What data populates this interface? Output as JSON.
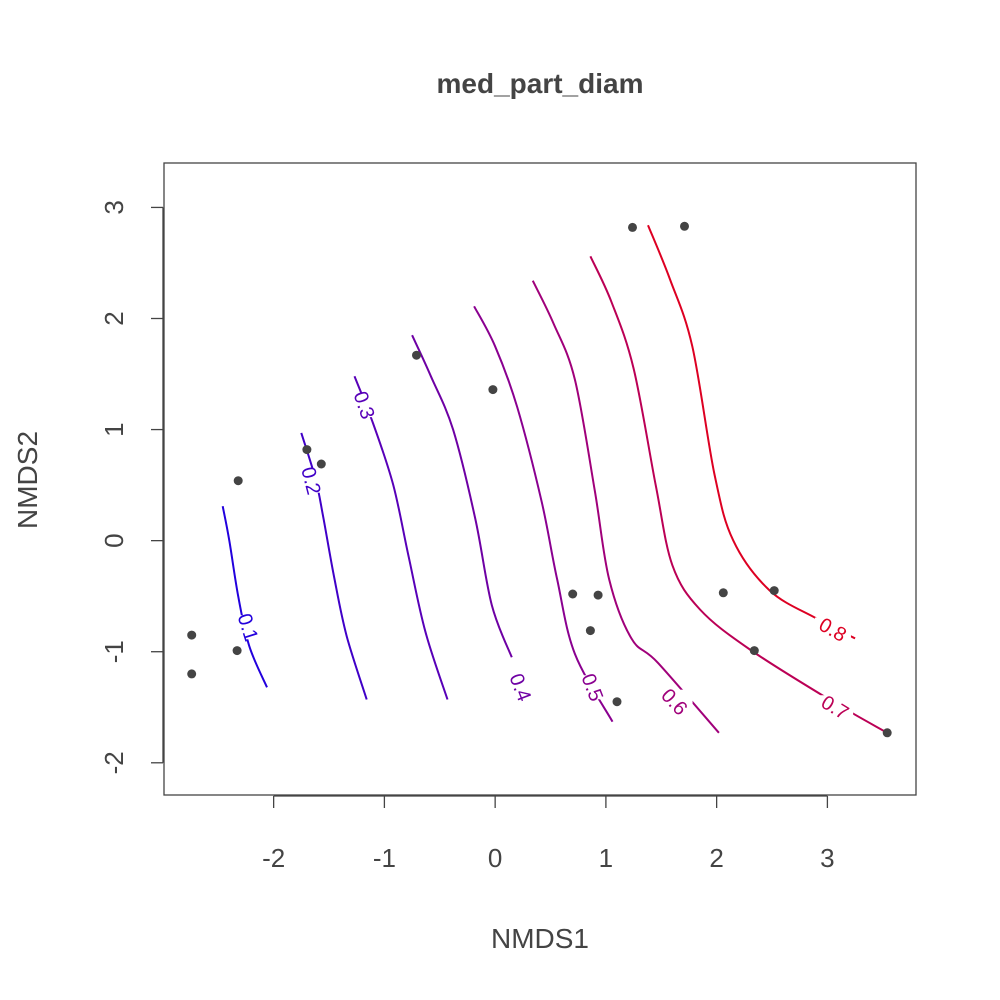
{
  "chart_data": {
    "type": "scatter",
    "title": "med_part_diam",
    "xlabel": "NMDS1",
    "ylabel": "NMDS2",
    "xlim": [
      -2.99,
      3.8
    ],
    "ylim": [
      -2.29,
      3.4
    ],
    "x_ticks": [
      -2,
      -1,
      0,
      1,
      2,
      3
    ],
    "x_tick_labels": [
      "-2",
      "-1",
      "0",
      "1",
      "2",
      "3"
    ],
    "y_ticks": [
      -2,
      -1,
      0,
      1,
      2,
      3
    ],
    "y_tick_labels": [
      "-2",
      "-1",
      "0",
      "1",
      "2",
      "3"
    ],
    "grid": false,
    "legend": "none",
    "point_color": "#444444",
    "points": [
      {
        "x": -2.74,
        "y": -0.85
      },
      {
        "x": -2.74,
        "y": -1.2
      },
      {
        "x": -2.33,
        "y": -0.99
      },
      {
        "x": -2.32,
        "y": 0.54
      },
      {
        "x": -1.7,
        "y": 0.82
      },
      {
        "x": -1.57,
        "y": 0.69
      },
      {
        "x": -0.71,
        "y": 1.67
      },
      {
        "x": -0.02,
        "y": 1.36
      },
      {
        "x": 0.7,
        "y": -0.48
      },
      {
        "x": 0.86,
        "y": -0.81
      },
      {
        "x": 0.93,
        "y": -0.49
      },
      {
        "x": 1.1,
        "y": -1.45
      },
      {
        "x": 1.24,
        "y": 2.82
      },
      {
        "x": 1.71,
        "y": 2.83
      },
      {
        "x": 2.06,
        "y": -0.47
      },
      {
        "x": 2.34,
        "y": -0.99
      },
      {
        "x": 2.52,
        "y": -0.45
      },
      {
        "x": 3.54,
        "y": -1.73
      }
    ],
    "contours": [
      {
        "level": "0.1",
        "color": "#2200dd",
        "path": [
          [
            -2.46,
            0.31
          ],
          [
            -2.4,
            0.0
          ],
          [
            -2.32,
            -0.5
          ],
          [
            -2.22,
            -0.95
          ],
          [
            -2.06,
            -1.32
          ]
        ],
        "label_at": [
          -2.23,
          -0.78
        ]
      },
      {
        "level": "0.2",
        "color": "#4000c8",
        "path": [
          [
            -1.75,
            0.97
          ],
          [
            -1.62,
            0.55
          ],
          [
            -1.55,
            0.2
          ],
          [
            -1.45,
            -0.35
          ],
          [
            -1.34,
            -0.86
          ],
          [
            -1.16,
            -1.43
          ]
        ],
        "label_at": [
          -1.66,
          0.54
        ]
      },
      {
        "level": "0.3",
        "color": "#5800b8",
        "path": [
          [
            -1.27,
            1.48
          ],
          [
            -1.1,
            1.05
          ],
          [
            -0.92,
            0.5
          ],
          [
            -0.78,
            -0.15
          ],
          [
            -0.63,
            -0.82
          ],
          [
            -0.43,
            -1.43
          ]
        ],
        "label_at": [
          -1.18,
          1.22
        ]
      },
      {
        "level": "0.4",
        "color": "#6e00a4",
        "path": [
          [
            -0.75,
            1.85
          ],
          [
            -0.58,
            1.48
          ],
          [
            -0.38,
            1.0
          ],
          [
            -0.18,
            0.2
          ],
          [
            -0.03,
            -0.58
          ],
          [
            0.15,
            -1.05
          ]
        ],
        "label_at": [
          0.23,
          -1.32
        ]
      },
      {
        "level": "0.5",
        "color": "#8a0090",
        "path": [
          [
            -0.19,
            2.11
          ],
          [
            0.0,
            1.75
          ],
          [
            0.2,
            1.2
          ],
          [
            0.42,
            0.35
          ],
          [
            0.56,
            -0.35
          ],
          [
            0.72,
            -1.02
          ],
          [
            1.06,
            -1.63
          ]
        ],
        "label_at": [
          0.88,
          -1.32
        ]
      },
      {
        "level": "0.6",
        "color": "#a0007a",
        "path": [
          [
            0.34,
            2.34
          ],
          [
            0.53,
            1.95
          ],
          [
            0.72,
            1.45
          ],
          [
            0.9,
            0.45
          ],
          [
            1.03,
            -0.35
          ],
          [
            1.23,
            -0.88
          ],
          [
            1.47,
            -1.1
          ],
          [
            2.02,
            -1.73
          ]
        ],
        "label_at": [
          1.62,
          -1.45
        ]
      },
      {
        "level": "0.7",
        "color": "#bb0055",
        "path": [
          [
            0.86,
            2.56
          ],
          [
            1.05,
            2.15
          ],
          [
            1.25,
            1.55
          ],
          [
            1.45,
            0.5
          ],
          [
            1.6,
            -0.22
          ],
          [
            1.85,
            -0.62
          ],
          [
            2.3,
            -0.98
          ],
          [
            3.05,
            -1.45
          ],
          [
            3.54,
            -1.73
          ]
        ],
        "label_at": [
          3.07,
          -1.5
        ]
      },
      {
        "level": "0.8",
        "color": "#dd0022",
        "path": [
          [
            1.38,
            2.84
          ],
          [
            1.58,
            2.35
          ],
          [
            1.78,
            1.75
          ],
          [
            1.98,
            0.6
          ],
          [
            2.15,
            0.0
          ],
          [
            2.48,
            -0.45
          ],
          [
            2.9,
            -0.7
          ],
          [
            3.25,
            -0.88
          ]
        ],
        "label_at": [
          3.05,
          -0.8
        ]
      }
    ]
  }
}
